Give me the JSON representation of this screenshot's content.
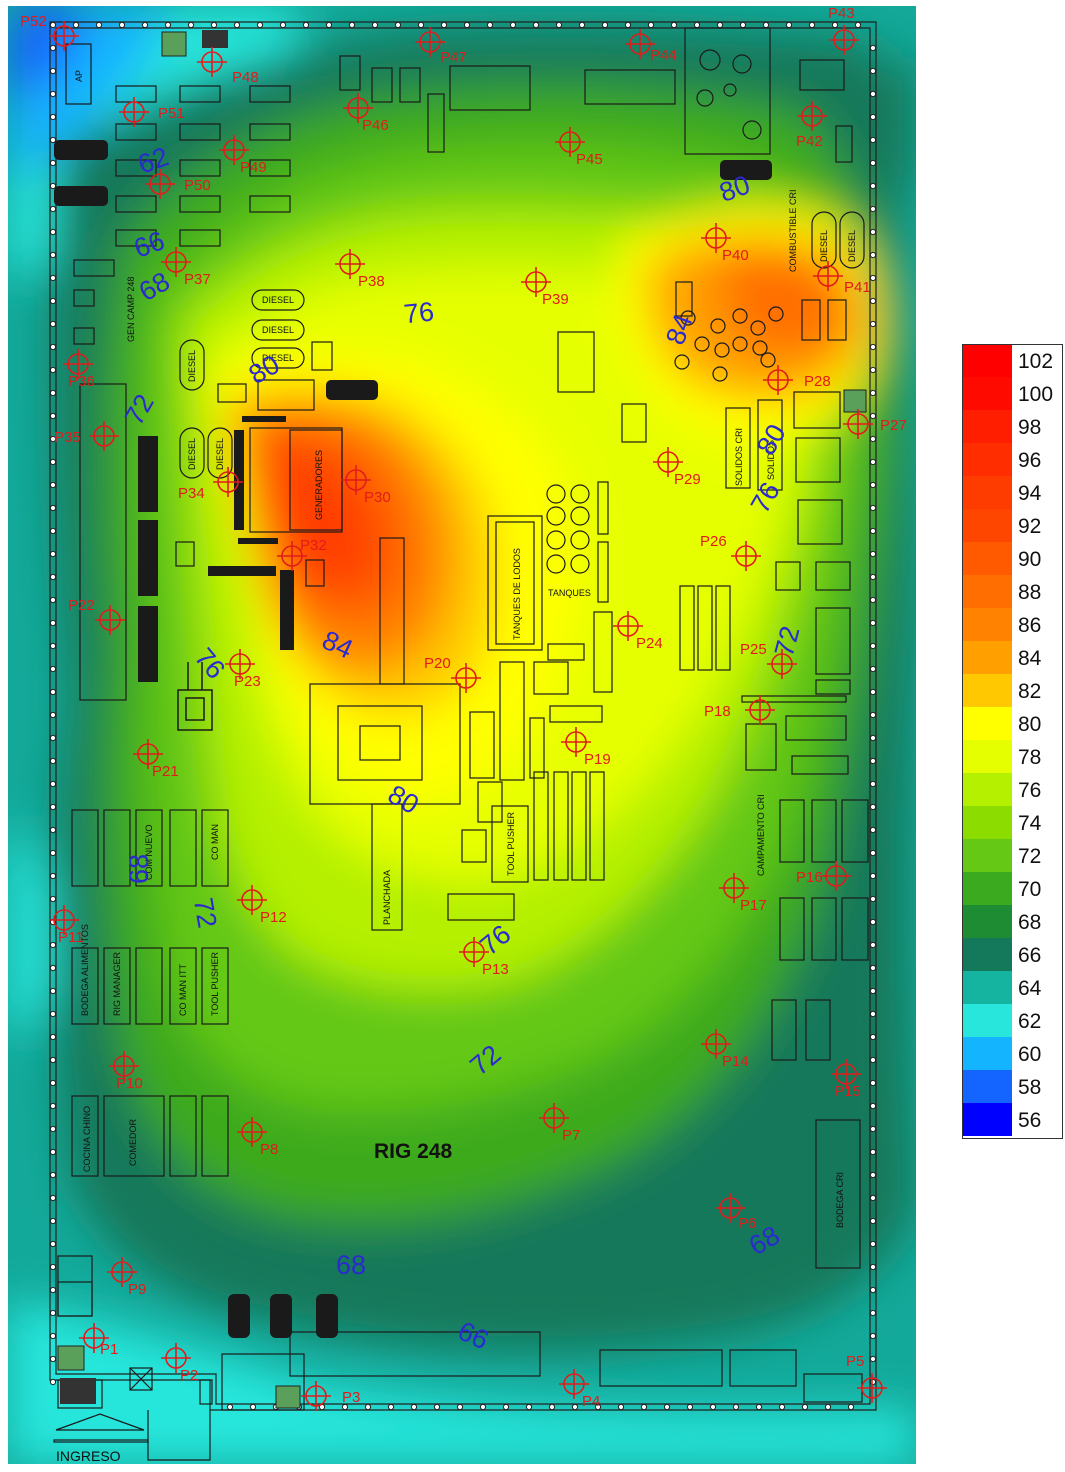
{
  "map": {
    "title": "RIG 248",
    "entrance_label": "INGRESO",
    "buildings": [
      {
        "id": "ap",
        "label": "AP"
      },
      {
        "id": "gen-camp",
        "label": "GEN CAMP 248"
      },
      {
        "id": "diesel-1",
        "label": "DIESEL"
      },
      {
        "id": "diesel-2",
        "label": "DIESEL"
      },
      {
        "id": "diesel-3",
        "label": "DIESEL"
      },
      {
        "id": "diesel-4",
        "label": "DIESEL"
      },
      {
        "id": "diesel-5",
        "label": "DIESEL"
      },
      {
        "id": "diesel-6",
        "label": "DIESEL"
      },
      {
        "id": "diesel-7",
        "label": "DIESEL"
      },
      {
        "id": "diesel-8",
        "label": "DIESEL"
      },
      {
        "id": "generadores",
        "label": "GENERADORES"
      },
      {
        "id": "tanques-lodos",
        "label": "TANQUES DE LODOS"
      },
      {
        "id": "tanques",
        "label": "TANQUES"
      },
      {
        "id": "solidos-cri",
        "label": "SOLIDOS CRI"
      },
      {
        "id": "solidos",
        "label": "SOLIDOS"
      },
      {
        "id": "combustible-cri",
        "label": "COMBUSTIBLE CRI"
      },
      {
        "id": "planchada",
        "label": "PLANCHADA"
      },
      {
        "id": "tool-pusher-1",
        "label": "TOOL PUSHER"
      },
      {
        "id": "campamento-cri",
        "label": "CAMPAMENTO CRI"
      },
      {
        "id": "com-nuevo",
        "label": "COM NUEVO"
      },
      {
        "id": "co-man",
        "label": "CO MAN"
      },
      {
        "id": "bodega-alimentos",
        "label": "BODEGA ALIMENTOS"
      },
      {
        "id": "rig-manager",
        "label": "RIG MANAGER"
      },
      {
        "id": "co-man-itt",
        "label": "CO MAN ITT"
      },
      {
        "id": "tool-pusher-2",
        "label": "TOOL PUSHER"
      },
      {
        "id": "cocina-chino",
        "label": "COCINA CHINO"
      },
      {
        "id": "comedor",
        "label": "COMEDOR"
      },
      {
        "id": "bodega-cri",
        "label": "BODEGA CRI"
      }
    ],
    "points": [
      {
        "id": "P1",
        "label": "P1"
      },
      {
        "id": "P2",
        "label": "P2"
      },
      {
        "id": "P3",
        "label": "P3"
      },
      {
        "id": "P4",
        "label": "P4"
      },
      {
        "id": "P5",
        "label": "P5"
      },
      {
        "id": "P6",
        "label": "P6"
      },
      {
        "id": "P7",
        "label": "P7"
      },
      {
        "id": "P8",
        "label": "P8"
      },
      {
        "id": "P9",
        "label": "P9"
      },
      {
        "id": "P10",
        "label": "P10"
      },
      {
        "id": "P11",
        "label": "P11"
      },
      {
        "id": "P12",
        "label": "P12"
      },
      {
        "id": "P13",
        "label": "P13"
      },
      {
        "id": "P14",
        "label": "P14"
      },
      {
        "id": "P15",
        "label": "P15"
      },
      {
        "id": "P16",
        "label": "P16"
      },
      {
        "id": "P17",
        "label": "P17"
      },
      {
        "id": "P18",
        "label": "P18"
      },
      {
        "id": "P19",
        "label": "P19"
      },
      {
        "id": "P20",
        "label": "P20"
      },
      {
        "id": "P21",
        "label": "P21"
      },
      {
        "id": "P22",
        "label": "P22"
      },
      {
        "id": "P23",
        "label": "P23"
      },
      {
        "id": "P24",
        "label": "P24"
      },
      {
        "id": "P25",
        "label": "P25"
      },
      {
        "id": "P26",
        "label": "P26"
      },
      {
        "id": "P27",
        "label": "P27"
      },
      {
        "id": "P28",
        "label": "P28"
      },
      {
        "id": "P29",
        "label": "P29"
      },
      {
        "id": "P30",
        "label": "P30"
      },
      {
        "id": "P32",
        "label": "P32"
      },
      {
        "id": "P34",
        "label": "P34"
      },
      {
        "id": "P35",
        "label": "P35"
      },
      {
        "id": "P36",
        "label": "P36"
      },
      {
        "id": "P37",
        "label": "P37"
      },
      {
        "id": "P38",
        "label": "P38"
      },
      {
        "id": "P39",
        "label": "P39"
      },
      {
        "id": "P40",
        "label": "P40"
      },
      {
        "id": "P41",
        "label": "P41"
      },
      {
        "id": "P42",
        "label": "P42"
      },
      {
        "id": "P43",
        "label": "P43"
      },
      {
        "id": "P44",
        "label": "P44"
      },
      {
        "id": "P45",
        "label": "P45"
      },
      {
        "id": "P46",
        "label": "P46"
      },
      {
        "id": "P47",
        "label": "P47"
      },
      {
        "id": "P48",
        "label": "P48"
      },
      {
        "id": "P49",
        "label": "P49"
      },
      {
        "id": "P50",
        "label": "P50"
      },
      {
        "id": "P51",
        "label": "P51"
      },
      {
        "id": "P52",
        "label": "P52"
      }
    ],
    "contour_labels": [
      "62",
      "66",
      "68",
      "72",
      "76",
      "80",
      "84",
      "80",
      "84",
      "76",
      "80",
      "76",
      "72",
      "68",
      "72",
      "76",
      "72",
      "80",
      "68",
      "66"
    ]
  },
  "legend": {
    "values": [
      "102",
      "100",
      "98",
      "96",
      "94",
      "92",
      "90",
      "88",
      "86",
      "84",
      "82",
      "80",
      "78",
      "76",
      "74",
      "72",
      "70",
      "68",
      "66",
      "64",
      "62",
      "60",
      "58",
      "56"
    ],
    "colors": [
      "#ff0000",
      "#ff0a00",
      "#ff1e00",
      "#ff2d00",
      "#ff3c00",
      "#ff4600",
      "#ff5a00",
      "#ff6e00",
      "#ff8200",
      "#ffa000",
      "#ffc800",
      "#ffff00",
      "#e6ff00",
      "#b4f000",
      "#8cdc00",
      "#64c814",
      "#3caa1e",
      "#1e8c32",
      "#14785a",
      "#14b4a0",
      "#28e6dc",
      "#14b4ff",
      "#1464ff",
      "#0000ff"
    ]
  }
}
